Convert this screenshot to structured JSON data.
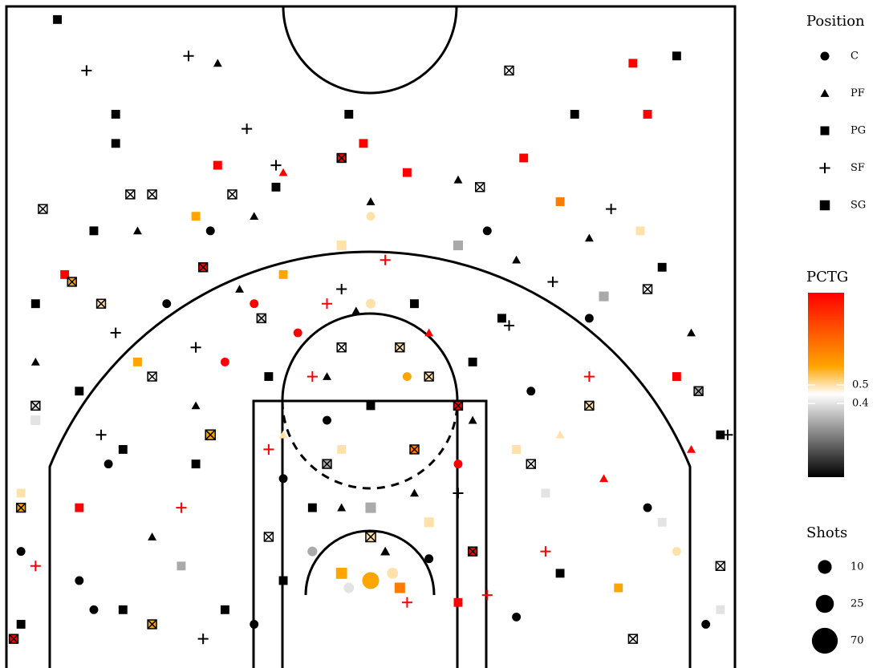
{
  "chart_data": {
    "type": "scatter",
    "legend_title": "Position",
    "colorbar_title": "PCTG",
    "size_title": "Shots",
    "xlim": [
      -250,
      250
    ],
    "ylim": [
      -50,
      404
    ],
    "clim": [
      0,
      1
    ],
    "cticks": [
      0.5,
      0.4
    ],
    "colormap": [
      "#000000",
      "#ffffff",
      "#ffa500",
      "#ff0000"
    ],
    "colormap_stops": [
      0,
      0.45,
      0.6,
      1
    ],
    "size_legend": [
      10,
      25,
      70
    ],
    "series": [
      {
        "name": "C",
        "marker": "circle",
        "x": [
          0,
          -15,
          15,
          -40,
          40,
          -60,
          60,
          -30,
          25,
          -100,
          110,
          -180,
          190,
          -200,
          210,
          -140,
          150,
          0,
          -50,
          80,
          -110,
          -240,
          230,
          -190,
          100,
          -80,
          0,
          -80
        ],
        "y": [
          10,
          5,
          15,
          30,
          25,
          80,
          90,
          120,
          150,
          160,
          140,
          90,
          60,
          10,
          30,
          200,
          190,
          200,
          180,
          250,
          250,
          30,
          -20,
          -10,
          -15,
          -20,
          260,
          200
        ],
        "pctg": [
          0.6,
          0.4,
          0.5,
          0.3,
          0,
          0,
          1,
          0,
          0.6,
          1,
          0,
          0,
          0,
          0,
          0.5,
          0,
          0,
          0.5,
          1,
          0,
          0,
          0,
          0,
          0,
          0,
          0,
          0.5,
          1
        ],
        "shots": [
          20,
          3,
          4,
          2,
          1,
          1,
          1,
          1,
          1,
          1,
          1,
          1,
          1,
          1,
          1,
          1,
          1,
          2,
          1,
          1,
          1,
          1,
          1,
          1,
          1,
          1,
          1,
          1
        ]
      },
      {
        "name": "PF",
        "marker": "triangle",
        "x": [
          10,
          -20,
          30,
          -60,
          70,
          -120,
          130,
          -150,
          160,
          -30,
          40,
          -90,
          100,
          0,
          -80,
          -230,
          220,
          -105,
          -60,
          60,
          150,
          -160,
          -10,
          220
        ],
        "y": [
          30,
          60,
          70,
          110,
          120,
          130,
          110,
          40,
          80,
          150,
          180,
          210,
          230,
          270,
          260,
          160,
          180,
          365,
          290,
          285,
          245,
          250,
          195,
          100
        ],
        "pctg": [
          0,
          0,
          0,
          0.5,
          0,
          0,
          0.5,
          0,
          1,
          0,
          1,
          0,
          0,
          0,
          0,
          0,
          0,
          0,
          1,
          0,
          0,
          0,
          0,
          1
        ],
        "shots": [
          2,
          1,
          1,
          1,
          1,
          1,
          1,
          1,
          1,
          1,
          1,
          1,
          1,
          1,
          1,
          1,
          1,
          1,
          1,
          1,
          1,
          1,
          1,
          1
        ]
      },
      {
        "name": "PG",
        "marker": "square",
        "x": [
          -215,
          210,
          180,
          -175,
          -175,
          -15,
          140,
          190,
          -5,
          -105,
          105,
          -65,
          25,
          -120,
          130,
          -190,
          185,
          -210,
          200,
          -150,
          160,
          -230,
          -20,
          60,
          -60,
          30,
          -230,
          240,
          -200,
          200,
          -70,
          70,
          -120,
          120,
          -40,
          40,
          0,
          -20,
          20,
          -60,
          60,
          -130,
          130,
          -170,
          170,
          -240,
          240,
          -200,
          210,
          -100,
          -240,
          -160,
          0,
          -20,
          90,
          -170,
          100
        ],
        "y": [
          395,
          370,
          365,
          330,
          310,
          330,
          330,
          330,
          310,
          295,
          300,
          280,
          290,
          260,
          270,
          250,
          250,
          220,
          225,
          210,
          205,
          200,
          240,
          240,
          220,
          200,
          120,
          110,
          60,
          50,
          150,
          160,
          90,
          70,
          60,
          50,
          60,
          15,
          5,
          10,
          -5,
          20,
          15,
          -10,
          5,
          -20,
          -10,
          140,
          150,
          -10,
          70,
          160,
          130,
          100,
          190,
          100,
          100
        ],
        "pctg": [
          0,
          0,
          1,
          0,
          0,
          0,
          0,
          1,
          1,
          1,
          1,
          0,
          1,
          0.6,
          0.7,
          0,
          0.5,
          1,
          0,
          0.45,
          0.3,
          0,
          0.5,
          0.3,
          0.6,
          0,
          0.4,
          0,
          1,
          0.4,
          0,
          0,
          0,
          0.4,
          0,
          0.5,
          0.3,
          0.6,
          0.7,
          0,
          1,
          0.3,
          0,
          0,
          0.6,
          0,
          0.4,
          0,
          1,
          0,
          0.5,
          0.6,
          0,
          0.5,
          0,
          0,
          0.5
        ],
        "shots": [
          1,
          1,
          1,
          1,
          1,
          1,
          1,
          1,
          1,
          1,
          1,
          1,
          1,
          1,
          1,
          1,
          1,
          1,
          1,
          2,
          2,
          1,
          2,
          2,
          1,
          1,
          2,
          1,
          1,
          1,
          1,
          1,
          1,
          1,
          1,
          2,
          3,
          4,
          3,
          1,
          1,
          1,
          1,
          1,
          1,
          1,
          1,
          1,
          1,
          1,
          1,
          1,
          1,
          1,
          1,
          1,
          1
        ]
      },
      {
        "name": "SF",
        "marker": "plus",
        "x": [
          -195,
          -125,
          -85,
          -65,
          165,
          -20,
          95,
          -30,
          10,
          -185,
          245,
          -120,
          -70,
          -130,
          60,
          -230,
          -115,
          25,
          80,
          120,
          -175,
          125,
          150,
          -40
        ],
        "y": [
          360,
          370,
          320,
          295,
          265,
          210,
          185,
          200,
          230,
          110,
          110,
          170,
          100,
          60,
          70,
          20,
          -30,
          -5,
          0,
          30,
          180,
          215,
          150,
          150
        ],
        "pctg": [
          0,
          0,
          0,
          0,
          0,
          0,
          0,
          1,
          1,
          0,
          0,
          0,
          1,
          1,
          0,
          1,
          0,
          1,
          1,
          1,
          0,
          0,
          1,
          1
        ],
        "shots": [
          1,
          1,
          1,
          1,
          1,
          1,
          1,
          1,
          1,
          1,
          1,
          1,
          1,
          1,
          1,
          1,
          1,
          1,
          1,
          1,
          1,
          1,
          1,
          1
        ]
      },
      {
        "name": "SG",
        "marker": "boxx",
        "x": [
          95,
          -165,
          -150,
          -95,
          -20,
          75,
          -225,
          -205,
          -115,
          -75,
          -20,
          20,
          40,
          60,
          -150,
          150,
          -110,
          110,
          -230,
          225,
          -240,
          240,
          -30,
          30,
          -70,
          70,
          -150,
          180,
          0,
          -245,
          190,
          -185
        ],
        "y": [
          360,
          275,
          275,
          275,
          300,
          280,
          265,
          215,
          225,
          190,
          170,
          170,
          150,
          130,
          150,
          130,
          110,
          90,
          130,
          140,
          60,
          20,
          90,
          100,
          40,
          30,
          -20,
          -30,
          40,
          -30,
          210,
          200
        ],
        "pctg": [
          0,
          0,
          0,
          0,
          1,
          0,
          0,
          0.6,
          1,
          0.4,
          0,
          0.5,
          0.5,
          1,
          0,
          0.5,
          0.6,
          0,
          0.4,
          0.3,
          0.6,
          0,
          0.3,
          0.7,
          0,
          1,
          0.6,
          0,
          0.5,
          1,
          0,
          0.5
        ],
        "shots": [
          1,
          1,
          1,
          1,
          1,
          1,
          1,
          1,
          1,
          1,
          1,
          1,
          1,
          1,
          1,
          1,
          2,
          1,
          1,
          1,
          1,
          1,
          1,
          1,
          1,
          1,
          1,
          1,
          2,
          1,
          1,
          1
        ]
      }
    ]
  }
}
